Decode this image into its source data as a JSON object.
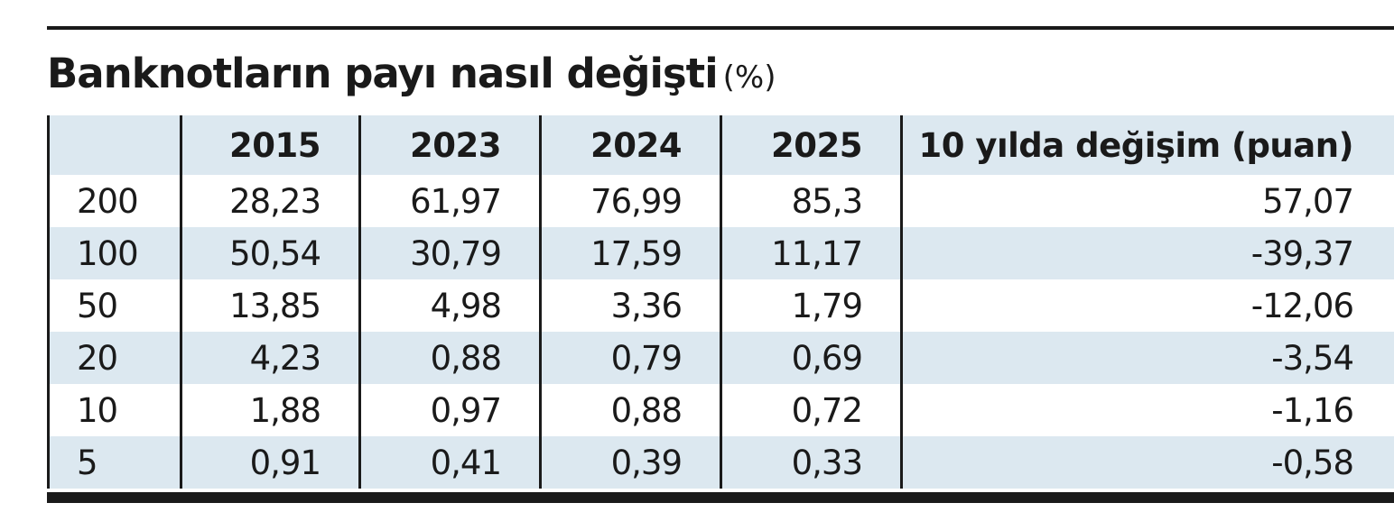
{
  "title": "Banknotların payı nasıl değişti",
  "unit": "(%)",
  "chart_data": {
    "type": "table",
    "title": "Banknotların payı nasıl değişti",
    "unit": "(%)",
    "columns": [
      "",
      "2015",
      "2023",
      "2024",
      "2025",
      "10 yılda değişim (puan)"
    ],
    "rows": [
      {
        "label": "200",
        "values": [
          "28,23",
          "61,97",
          "76,99",
          "85,3",
          "57,07"
        ]
      },
      {
        "label": "100",
        "values": [
          "50,54",
          "30,79",
          "17,59",
          "11,17",
          "-39,37"
        ]
      },
      {
        "label": "50",
        "values": [
          "13,85",
          "4,98",
          "3,36",
          "1,79",
          "-12,06"
        ]
      },
      {
        "label": "20",
        "values": [
          "4,23",
          "0,88",
          "0,79",
          "0,69",
          "-3,54"
        ]
      },
      {
        "label": "10",
        "values": [
          "1,88",
          "0,97",
          "0,88",
          "0,72",
          "-1,16"
        ]
      },
      {
        "label": "5",
        "values": [
          "0,91",
          "0,41",
          "0,39",
          "0,33",
          "-0,58"
        ]
      }
    ]
  },
  "colors": {
    "header_fill": "#dce8f0",
    "stripe_fill": "#dce8f0",
    "rule": "#1a1a1a"
  }
}
